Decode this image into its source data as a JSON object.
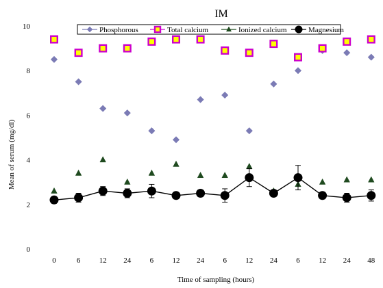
{
  "chart_data": {
    "type": "scatter",
    "title": "IM",
    "xlabel": "Time of sampling (hours)",
    "ylabel": "Mean of serum (mg/dl)",
    "categories": [
      "0",
      "6",
      "12",
      "24",
      "6",
      "12",
      "24",
      "6",
      "12",
      "24",
      "6",
      "12",
      "24",
      "48"
    ],
    "ylim": [
      0,
      12
    ],
    "yticks": [
      "0",
      "2",
      "4",
      "6",
      "8",
      "10",
      "12"
    ],
    "grid": false,
    "legend_position": "top",
    "series": [
      {
        "name": "Phosphorous",
        "marker": "diamond",
        "color": "#7b7bb5",
        "line": false,
        "values": [
          8.5,
          7.5,
          6.3,
          6.1,
          5.3,
          4.9,
          6.7,
          6.9,
          5.3,
          7.4,
          8.0,
          8.9,
          8.8,
          8.6
        ]
      },
      {
        "name": "Total calcium",
        "marker": "square",
        "color": "#cc00cc",
        "line": false,
        "values": [
          9.4,
          8.8,
          9.0,
          9.0,
          9.3,
          9.4,
          9.4,
          8.9,
          8.8,
          9.2,
          8.6,
          9.0,
          9.3,
          9.4
        ]
      },
      {
        "name": "Ionized calcium",
        "marker": "triangle",
        "color": "#1f4a1f",
        "line": false,
        "values": [
          2.6,
          3.4,
          4.0,
          3.0,
          3.4,
          3.8,
          3.3,
          3.3,
          3.7,
          2.6,
          2.9,
          3.0,
          3.1,
          3.1
        ]
      },
      {
        "name": "Magnesium",
        "marker": "circle",
        "color": "#000000",
        "line": true,
        "values": [
          2.2,
          2.3,
          2.6,
          2.5,
          2.6,
          2.4,
          2.5,
          2.4,
          3.2,
          2.5,
          3.2,
          2.4,
          2.3,
          2.4
        ],
        "error": [
          0.15,
          0.2,
          0.2,
          0.2,
          0.3,
          0.1,
          0.15,
          0.3,
          0.4,
          0.15,
          0.55,
          0.15,
          0.2,
          0.25
        ]
      }
    ]
  }
}
